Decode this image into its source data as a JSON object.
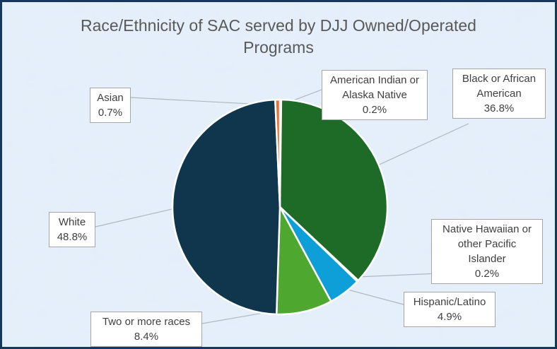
{
  "chart_data": {
    "type": "pie",
    "title_line1": "Race/Ethnicity of SAC served by DJJ Owned/Operated",
    "title_line2": "Programs",
    "slices": [
      {
        "label": "American Indian or Alaska Native",
        "value": 0.2,
        "value_label": "0.2%",
        "color": "#5b9bd5"
      },
      {
        "label": "Black or African American",
        "value": 36.8,
        "value_label": "36.8%",
        "color": "#1e6b27"
      },
      {
        "label": "Native Hawaiian or other Pacific Islander",
        "value": 0.2,
        "value_label": "0.2%",
        "color": "#2e75b6"
      },
      {
        "label": "Hispanic/Latino",
        "value": 4.9,
        "value_label": "4.9%",
        "color": "#0e9fd8"
      },
      {
        "label": "Two or more races",
        "value": 8.4,
        "value_label": "8.4%",
        "color": "#4ea72e"
      },
      {
        "label": "White",
        "value": 48.8,
        "value_label": "48.8%",
        "color": "#0f364d"
      },
      {
        "label": "Asian",
        "value": 0.7,
        "value_label": "0.7%",
        "color": "#e97132"
      }
    ],
    "legend": "none",
    "data_labels": "category and percent, callouts"
  }
}
